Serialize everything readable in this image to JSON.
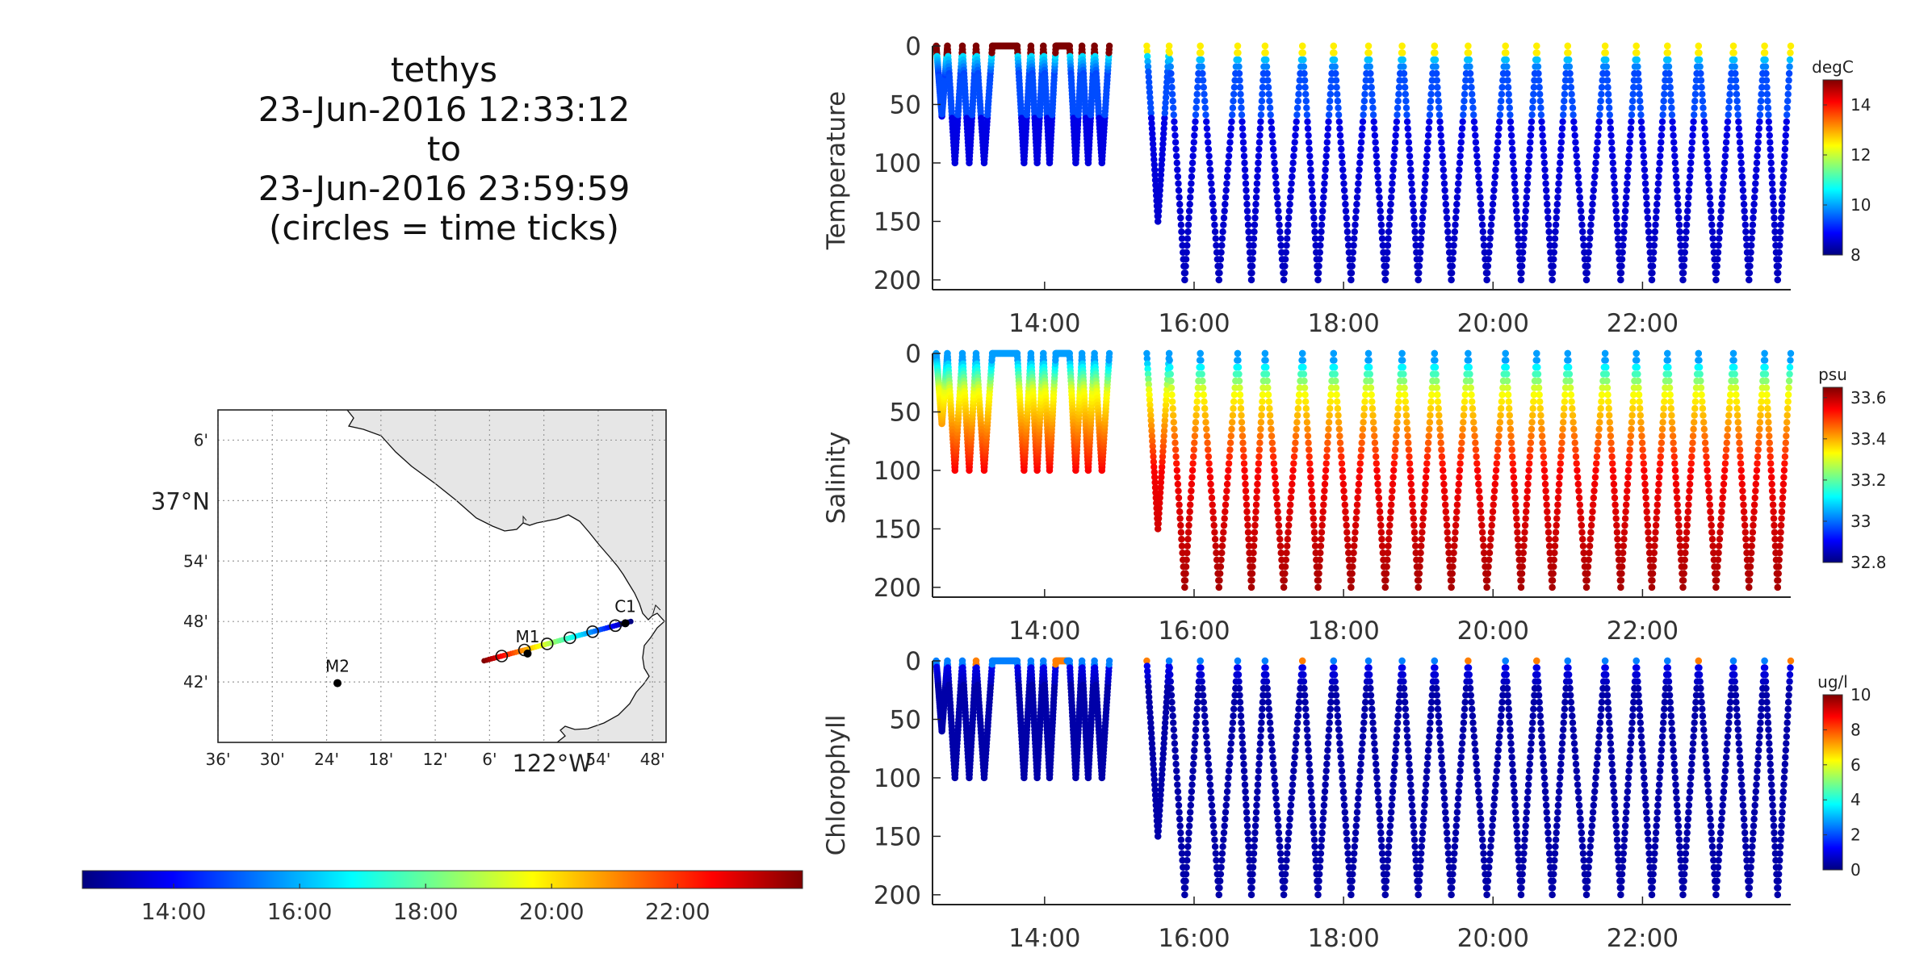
{
  "title": {
    "lines": [
      "tethys",
      "23-Jun-2016 12:33:12",
      "to",
      "23-Jun-2016 23:59:59",
      "(circles = time ticks)"
    ]
  },
  "colors": {
    "jet": [
      "#00007f",
      "#0000ff",
      "#007fff",
      "#00ffff",
      "#7fff7f",
      "#ffff00",
      "#ff7f00",
      "#ff0000",
      "#7f0000"
    ],
    "land": "#e6e6e6",
    "grid": "#999999",
    "axis": "#222222"
  },
  "chart_data": [
    {
      "type": "scatter",
      "name": "temperature-section",
      "ylabel": "Temperature",
      "colorbar_label": "degC",
      "colorbar_ticks": [
        "8",
        "10",
        "12",
        "14"
      ],
      "clim": [
        8,
        15
      ],
      "xlim": [
        "12:30",
        "23:59"
      ],
      "ylim": [
        207,
        0
      ],
      "xticks": [
        "14:00",
        "16:00",
        "18:00",
        "20:00",
        "22:00"
      ],
      "yticks": [
        "0",
        "50",
        "100",
        "150",
        "200"
      ],
      "profiles": [
        {
          "t0": "12:33",
          "t1": "12:42",
          "max": 60
        },
        {
          "t0": "12:42",
          "t1": "12:54",
          "max": 100
        },
        {
          "t0": "12:54",
          "t1": "13:05",
          "max": 100
        },
        {
          "t0": "13:05",
          "t1": "13:18",
          "max": 100
        },
        {
          "t0": "13:18",
          "t1": "13:38",
          "max": 0
        },
        {
          "t0": "13:38",
          "t1": "13:49",
          "max": 100
        },
        {
          "t0": "13:49",
          "t1": "13:59",
          "max": 100
        },
        {
          "t0": "13:59",
          "t1": "14:09",
          "max": 100
        },
        {
          "t0": "14:09",
          "t1": "14:20",
          "max": 0
        },
        {
          "t0": "14:20",
          "t1": "14:30",
          "max": 100
        },
        {
          "t0": "14:30",
          "t1": "14:40",
          "max": 100
        },
        {
          "t0": "14:40",
          "t1": "14:52",
          "max": 100
        },
        {
          "t0": "15:22",
          "t1": "15:40",
          "max": 150
        },
        {
          "t0": "15:40",
          "t1": "16:05",
          "max": 200
        },
        {
          "t0": "16:05",
          "t1": "16:35",
          "max": 200
        },
        {
          "t0": "16:35",
          "t1": "16:57",
          "max": 200
        },
        {
          "t0": "16:57",
          "t1": "17:27",
          "max": 200
        },
        {
          "t0": "17:27",
          "t1": "17:52",
          "max": 200
        },
        {
          "t0": "17:52",
          "t1": "18:20",
          "max": 200
        },
        {
          "t0": "18:20",
          "t1": "18:47",
          "max": 200
        },
        {
          "t0": "18:47",
          "t1": "19:13",
          "max": 200
        },
        {
          "t0": "19:13",
          "t1": "19:40",
          "max": 200
        },
        {
          "t0": "19:40",
          "t1": "20:10",
          "max": 200
        },
        {
          "t0": "20:10",
          "t1": "20:35",
          "max": 200
        },
        {
          "t0": "20:35",
          "t1": "21:00",
          "max": 200
        },
        {
          "t0": "21:00",
          "t1": "21:30",
          "max": 200
        },
        {
          "t0": "21:30",
          "t1": "21:55",
          "max": 200
        },
        {
          "t0": "21:55",
          "t1": "22:20",
          "max": 200
        },
        {
          "t0": "22:20",
          "t1": "22:45",
          "max": 200
        },
        {
          "t0": "22:45",
          "t1": "23:13",
          "max": 200
        },
        {
          "t0": "23:13",
          "t1": "23:38",
          "max": 200
        },
        {
          "t0": "23:38",
          "t1": "23:59",
          "max": 200
        }
      ]
    },
    {
      "type": "scatter",
      "name": "salinity-section",
      "ylabel": "Salinity",
      "colorbar_label": "psu",
      "colorbar_ticks": [
        "32.8",
        "33",
        "33.2",
        "33.4",
        "33.6"
      ],
      "clim": [
        32.8,
        33.65
      ],
      "xlim": [
        "12:30",
        "23:59"
      ],
      "ylim": [
        207,
        0
      ],
      "xticks": [
        "14:00",
        "16:00",
        "18:00",
        "20:00",
        "22:00"
      ],
      "yticks": [
        "0",
        "50",
        "100",
        "150",
        "200"
      ]
    },
    {
      "type": "scatter",
      "name": "chlorophyll-section",
      "ylabel": "Chlorophyll",
      "colorbar_label": "ug/l",
      "colorbar_ticks": [
        "0",
        "2",
        "4",
        "6",
        "8",
        "10"
      ],
      "clim": [
        0,
        10
      ],
      "xlim": [
        "12:30",
        "23:59"
      ],
      "ylim": [
        207,
        0
      ],
      "xticks": [
        "14:00",
        "16:00",
        "18:00",
        "20:00",
        "22:00"
      ],
      "yticks": [
        "0",
        "50",
        "100",
        "150",
        "200"
      ]
    },
    {
      "type": "scatter",
      "name": "track-map",
      "lat_ticks": [
        "6'",
        "37°N",
        "54'",
        "48'",
        "42'"
      ],
      "lat_values": [
        37.1,
        37.0,
        36.9,
        36.8,
        36.7
      ],
      "lon_ticks": [
        "36'",
        "30'",
        "24'",
        "18'",
        "12'",
        "6'",
        "122°W",
        "54'",
        "48'"
      ],
      "lon_values": [
        -122.6,
        -122.5,
        -122.4,
        -122.3,
        -122.2,
        -122.1,
        -122.0,
        -121.9,
        -121.8
      ],
      "xlim": [
        -122.6,
        -121.775
      ],
      "ylim": [
        36.6,
        37.15
      ],
      "stations": [
        {
          "label": "M2",
          "lon": -122.38,
          "lat": 36.698
        },
        {
          "label": "M1",
          "lon": -122.03,
          "lat": 36.747
        },
        {
          "label": "C1",
          "lon": -121.85,
          "lat": 36.797
        }
      ],
      "track_start": {
        "lon": -122.11,
        "lat": 36.735
      },
      "track_end": {
        "lon": -121.84,
        "lat": 36.8
      },
      "time_circles": 6
    }
  ],
  "time_colorbar": {
    "ticks": [
      "14:00",
      "16:00",
      "18:00",
      "20:00",
      "22:00"
    ],
    "range": [
      "12:33",
      "23:59"
    ]
  }
}
